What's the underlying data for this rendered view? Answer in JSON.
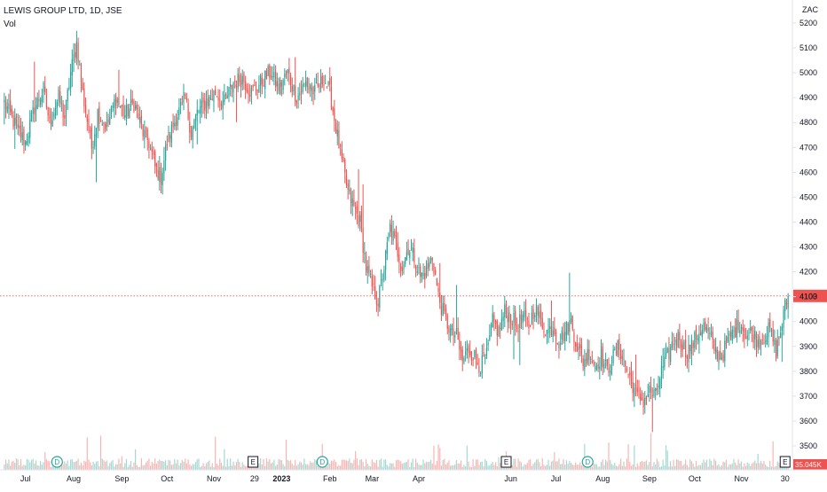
{
  "chart_data": {
    "type": "candlestick",
    "title": "LEWIS GROUP LTD, 1D, JSE",
    "volume_label": "Vol",
    "currency": "ZAC",
    "ylim": [
      3400,
      5300
    ],
    "y_ticks": [
      3500,
      3600,
      3700,
      3800,
      3900,
      4000,
      4100,
      4200,
      4300,
      4400,
      4500,
      4600,
      4700,
      4800,
      4900,
      5000,
      5100,
      5200
    ],
    "x_labels": [
      {
        "label": "Jul",
        "day": 14
      },
      {
        "label": "Aug",
        "day": 46
      },
      {
        "label": "Sep",
        "day": 78
      },
      {
        "label": "Oct",
        "day": 108
      },
      {
        "label": "Nov",
        "day": 139
      },
      {
        "label": "29",
        "day": 166
      },
      {
        "label": "2023",
        "day": 184
      },
      {
        "label": "Feb",
        "day": 216
      },
      {
        "label": "Mar",
        "day": 244
      },
      {
        "label": "Apr",
        "day": 275
      },
      {
        "label": "Jun",
        "day": 336
      },
      {
        "label": "Jul",
        "day": 366
      },
      {
        "label": "Aug",
        "day": 397
      },
      {
        "label": "Sep",
        "day": 428
      },
      {
        "label": "Oct",
        "day": 458
      },
      {
        "label": "Nov",
        "day": 489
      },
      {
        "label": "30",
        "day": 518
      }
    ],
    "last_price": {
      "value": 4103,
      "label": "4103"
    },
    "last_volume_label": "35.045K",
    "events": [
      {
        "type": "D",
        "day": 35
      },
      {
        "type": "E",
        "day": 165
      },
      {
        "type": "D",
        "day": 211
      },
      {
        "type": "E",
        "day": 333
      },
      {
        "type": "D",
        "day": 387
      },
      {
        "type": "E",
        "day": 518
      }
    ],
    "price_anchors": [
      [
        0,
        4880
      ],
      [
        8,
        4780
      ],
      [
        14,
        4720
      ],
      [
        20,
        4860
      ],
      [
        26,
        4930
      ],
      [
        30,
        4800
      ],
      [
        36,
        4900
      ],
      [
        40,
        4820
      ],
      [
        44,
        5000
      ],
      [
        48,
        5120
      ],
      [
        52,
        4920
      ],
      [
        58,
        4700
      ],
      [
        62,
        4840
      ],
      [
        68,
        4780
      ],
      [
        74,
        4900
      ],
      [
        80,
        4830
      ],
      [
        86,
        4880
      ],
      [
        92,
        4760
      ],
      [
        96,
        4720
      ],
      [
        100,
        4620
      ],
      [
        104,
        4580
      ],
      [
        108,
        4720
      ],
      [
        114,
        4820
      ],
      [
        120,
        4900
      ],
      [
        124,
        4760
      ],
      [
        128,
        4840
      ],
      [
        134,
        4880
      ],
      [
        140,
        4920
      ],
      [
        146,
        4880
      ],
      [
        152,
        4960
      ],
      [
        158,
        4980
      ],
      [
        164,
        4920
      ],
      [
        170,
        4960
      ],
      [
        176,
        5000
      ],
      [
        182,
        4940
      ],
      [
        188,
        5000
      ],
      [
        194,
        4900
      ],
      [
        200,
        4960
      ],
      [
        206,
        4920
      ],
      [
        212,
        4980
      ],
      [
        216,
        4920
      ],
      [
        220,
        4780
      ],
      [
        224,
        4640
      ],
      [
        228,
        4520
      ],
      [
        232,
        4460
      ],
      [
        236,
        4400
      ],
      [
        240,
        4220
      ],
      [
        244,
        4140
      ],
      [
        248,
        4080
      ],
      [
        252,
        4220
      ],
      [
        256,
        4380
      ],
      [
        260,
        4300
      ],
      [
        264,
        4220
      ],
      [
        268,
        4300
      ],
      [
        272,
        4260
      ],
      [
        276,
        4180
      ],
      [
        280,
        4200
      ],
      [
        284,
        4260
      ],
      [
        288,
        4100
      ],
      [
        292,
        4020
      ],
      [
        296,
        3960
      ],
      [
        300,
        3940
      ],
      [
        304,
        3840
      ],
      [
        308,
        3890
      ],
      [
        312,
        3860
      ],
      [
        316,
        3820
      ],
      [
        320,
        3860
      ],
      [
        324,
        4000
      ],
      [
        328,
        3960
      ],
      [
        332,
        4040
      ],
      [
        336,
        4020
      ],
      [
        340,
        3980
      ],
      [
        344,
        4020
      ],
      [
        348,
        3980
      ],
      [
        352,
        4060
      ],
      [
        356,
        4000
      ],
      [
        360,
        3960
      ],
      [
        364,
        3980
      ],
      [
        368,
        3920
      ],
      [
        372,
        3960
      ],
      [
        376,
        4000
      ],
      [
        380,
        3900
      ],
      [
        384,
        3840
      ],
      [
        388,
        3880
      ],
      [
        392,
        3820
      ],
      [
        396,
        3860
      ],
      [
        400,
        3800
      ],
      [
        404,
        3860
      ],
      [
        408,
        3900
      ],
      [
        412,
        3820
      ],
      [
        416,
        3760
      ],
      [
        420,
        3700
      ],
      [
        424,
        3680
      ],
      [
        428,
        3720
      ],
      [
        432,
        3700
      ],
      [
        436,
        3800
      ],
      [
        440,
        3860
      ],
      [
        444,
        3920
      ],
      [
        448,
        3940
      ],
      [
        452,
        3880
      ],
      [
        456,
        3900
      ],
      [
        460,
        3950
      ],
      [
        464,
        3980
      ],
      [
        468,
        3940
      ],
      [
        472,
        3880
      ],
      [
        476,
        3860
      ],
      [
        480,
        3920
      ],
      [
        484,
        3960
      ],
      [
        488,
        4000
      ],
      [
        492,
        3940
      ],
      [
        496,
        3960
      ],
      [
        500,
        3920
      ],
      [
        504,
        3940
      ],
      [
        508,
        3970
      ],
      [
        512,
        3880
      ],
      [
        515,
        3960
      ],
      [
        518,
        4060
      ],
      [
        520,
        4103
      ]
    ],
    "colors": {
      "up": "#26a69a",
      "down": "#ef5350",
      "up_volume": "#a6d9d2",
      "down_volume": "#f7b6b4",
      "last_price_line": "#ef5350",
      "axis_text": "#131722",
      "border": "#e0e3eb"
    }
  }
}
